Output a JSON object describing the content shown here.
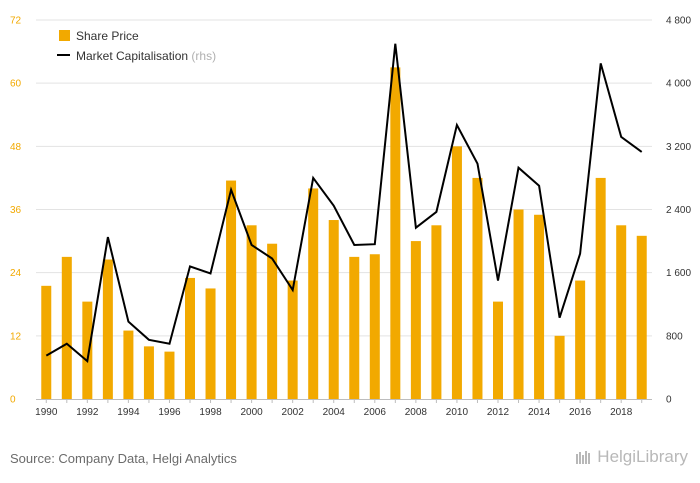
{
  "chart_data": {
    "type": "bar+line",
    "x": [
      1990,
      1991,
      1992,
      1993,
      1994,
      1995,
      1996,
      1997,
      1998,
      1999,
      2000,
      2001,
      2002,
      2003,
      2004,
      2005,
      2006,
      2007,
      2008,
      2009,
      2010,
      2011,
      2012,
      2013,
      2014,
      2015,
      2016,
      2017,
      2018,
      2019
    ],
    "x_tick_labels": [
      "1990",
      "1992",
      "1994",
      "1996",
      "1998",
      "2000",
      "2002",
      "2004",
      "2006",
      "2008",
      "2010",
      "2012",
      "2014",
      "2016",
      "2018"
    ],
    "series": [
      {
        "name": "Share Price",
        "kind": "bar",
        "axis": "left",
        "color": "#f2a900",
        "values": [
          21.5,
          27,
          18.5,
          26.5,
          13,
          10,
          9,
          23,
          21,
          41.5,
          33,
          29.5,
          22.5,
          40,
          34,
          27,
          27.5,
          63,
          30,
          33,
          48,
          42,
          18.5,
          36,
          35,
          12,
          22.5,
          42,
          33,
          31
        ]
      },
      {
        "name": "Market Capitalisation",
        "name_suffix": "(rhs)",
        "kind": "line",
        "axis": "right",
        "color": "#000000",
        "values": [
          550,
          700,
          480,
          2050,
          980,
          750,
          700,
          1680,
          1590,
          2650,
          1950,
          1780,
          1380,
          2800,
          2450,
          1950,
          1960,
          4500,
          2170,
          2370,
          3470,
          2980,
          1500,
          2930,
          2700,
          1030,
          1840,
          4250,
          3320,
          3130
        ]
      }
    ],
    "y_left": {
      "ticks": [
        0,
        12,
        24,
        36,
        48,
        60,
        72
      ],
      "tick_labels": [
        "0",
        "12",
        "24",
        "36",
        "48",
        "60",
        "72"
      ],
      "lim": [
        0,
        72
      ]
    },
    "y_right": {
      "ticks": [
        0,
        800,
        1600,
        2400,
        3200,
        4000,
        4800
      ],
      "tick_labels": [
        "0",
        "800",
        "1 600",
        "2 400",
        "3 200",
        "4 000",
        "4 800"
      ],
      "lim": [
        0,
        4800
      ]
    },
    "grid": true,
    "legend": "top-left",
    "colors": {
      "bar": "#f2a900",
      "line": "#000000",
      "left_tick": "#f2a900",
      "grid": "#e3e3e3"
    }
  },
  "source_text": "Source: Company Data, Helgi Analytics",
  "brand_text": "HelgiLibrary"
}
